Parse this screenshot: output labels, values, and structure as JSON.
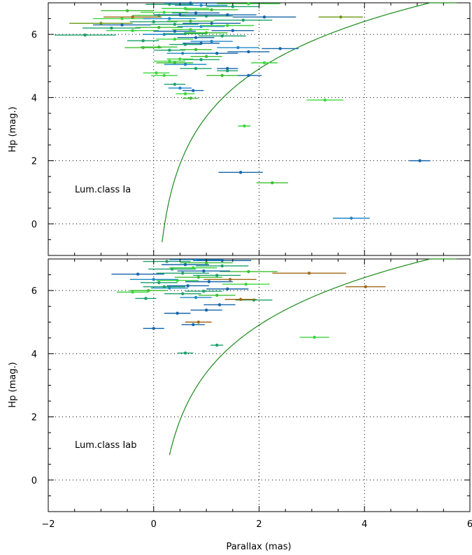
{
  "chart_data": [
    {
      "type": "scatter",
      "panel_label": "Lum.class Ia",
      "xlabel": "",
      "ylabel": "Hp (mag.)",
      "xlim": [
        -2,
        6
      ],
      "ylim": [
        -1,
        7
      ],
      "xticks": [
        -2,
        0,
        2,
        4,
        6
      ],
      "yticks": [
        0,
        2,
        4,
        6
      ],
      "grid": true,
      "curve": {
        "color": "#1b8a1b",
        "x_min": 0.16,
        "x_max": 5.75
      },
      "points": [
        {
          "x": 5.05,
          "y": 2.0,
          "err": 0.2,
          "color": "#1565a8"
        },
        {
          "x": 3.75,
          "y": 0.18,
          "err": 0.35,
          "color": "#1e88c8"
        },
        {
          "x": 2.25,
          "y": 1.3,
          "err": 0.3,
          "color": "#3cbf2e"
        },
        {
          "x": 1.65,
          "y": 1.63,
          "err": 0.42,
          "color": "#1565a8"
        },
        {
          "x": 3.25,
          "y": 3.92,
          "err": 0.35,
          "color": "#3cd63c"
        },
        {
          "x": 1.72,
          "y": 3.1,
          "err": 0.12,
          "color": "#3cd63c"
        },
        {
          "x": 3.55,
          "y": 6.55,
          "err": 0.42,
          "color": "#6b9a18"
        },
        {
          "x": -1.3,
          "y": 5.98,
          "err": 0.58,
          "color": "#1aa06a"
        },
        {
          "x": 2.4,
          "y": 5.55,
          "err": 0.35,
          "color": "#1565a8"
        },
        {
          "x": 2.1,
          "y": 5.1,
          "err": 0.25,
          "color": "#3cd63c"
        },
        {
          "x": 0.4,
          "y": 4.42,
          "err": 0.2,
          "color": "#1aa06a"
        },
        {
          "x": 0.5,
          "y": 4.3,
          "err": 0.22,
          "color": "#1e88c8"
        },
        {
          "x": 0.75,
          "y": 4.22,
          "err": 0.2,
          "color": "#1565a8"
        },
        {
          "x": 0.6,
          "y": 4.12,
          "err": 0.18,
          "color": "#3cd63c"
        },
        {
          "x": 0.7,
          "y": 3.98,
          "err": 0.15,
          "color": "#3cbf2e"
        },
        {
          "x": 0.05,
          "y": 4.78,
          "err": 0.25,
          "color": "#3cd63c"
        },
        {
          "x": 0.2,
          "y": 4.7,
          "err": 0.25,
          "color": "#3cd63c"
        },
        {
          "x": 0.8,
          "y": 4.92,
          "err": 0.3,
          "color": "#1aa06a"
        },
        {
          "x": 1.4,
          "y": 4.92,
          "err": 0.2,
          "color": "#1565a8"
        },
        {
          "x": 1.4,
          "y": 4.85,
          "err": 0.2,
          "color": "#1aa06a"
        },
        {
          "x": 1.8,
          "y": 4.7,
          "err": 0.25,
          "color": "#1565a8"
        },
        {
          "x": 1.3,
          "y": 4.7,
          "err": 0.3,
          "color": "#3cbf2e"
        },
        {
          "x": 0.4,
          "y": 5.1,
          "err": 0.35,
          "color": "#3cbf2e"
        },
        {
          "x": 0.6,
          "y": 5.05,
          "err": 0.4,
          "color": "#1e88c8"
        },
        {
          "x": 0.3,
          "y": 5.15,
          "err": 0.3,
          "color": "#3cd63c"
        },
        {
          "x": 0.9,
          "y": 5.2,
          "err": 0.35,
          "color": "#1aa06a"
        },
        {
          "x": 1.0,
          "y": 5.3,
          "err": 0.3,
          "color": "#3cbf2e"
        },
        {
          "x": 0.5,
          "y": 5.22,
          "err": 0.25,
          "color": "#3cd63c"
        },
        {
          "x": 0.55,
          "y": 5.4,
          "err": 0.3,
          "color": "#1e88c8"
        },
        {
          "x": 1.2,
          "y": 5.4,
          "err": 0.4,
          "color": "#1565a8"
        },
        {
          "x": 1.8,
          "y": 5.45,
          "err": 0.4,
          "color": "#1565a8"
        },
        {
          "x": 0.3,
          "y": 5.5,
          "err": 0.3,
          "color": "#1aa06a"
        },
        {
          "x": 0.8,
          "y": 5.52,
          "err": 0.3,
          "color": "#3cbf2e"
        },
        {
          "x": 1.6,
          "y": 5.58,
          "err": 0.4,
          "color": "#1e88c8"
        },
        {
          "x": 0.1,
          "y": 5.6,
          "err": 0.35,
          "color": "#3cbf2e"
        },
        {
          "x": -0.2,
          "y": 5.58,
          "err": 0.35,
          "color": "#3cbf2e"
        },
        {
          "x": 0.6,
          "y": 5.68,
          "err": 0.3,
          "color": "#1aa06a"
        },
        {
          "x": 0.9,
          "y": 5.72,
          "err": 0.35,
          "color": "#1565a8"
        },
        {
          "x": 1.1,
          "y": 5.78,
          "err": 0.4,
          "color": "#1e88c8"
        },
        {
          "x": -0.2,
          "y": 5.8,
          "err": 0.3,
          "color": "#1aa06a"
        },
        {
          "x": 0.4,
          "y": 5.85,
          "err": 0.35,
          "color": "#3cd63c"
        },
        {
          "x": 0.8,
          "y": 5.9,
          "err": 0.35,
          "color": "#1565a8"
        },
        {
          "x": 1.3,
          "y": 5.95,
          "err": 0.45,
          "color": "#1aa06a"
        },
        {
          "x": 0.2,
          "y": 6.0,
          "err": 0.4,
          "color": "#1e88c8"
        },
        {
          "x": 0.6,
          "y": 6.02,
          "err": 0.4,
          "color": "#1aa06a"
        },
        {
          "x": 1.0,
          "y": 6.05,
          "err": 0.4,
          "color": "#3cbf2e"
        },
        {
          "x": -0.4,
          "y": 6.12,
          "err": 0.5,
          "color": "#3cd63c"
        },
        {
          "x": 0.4,
          "y": 6.1,
          "err": 0.4,
          "color": "#1565a8"
        },
        {
          "x": 1.5,
          "y": 6.12,
          "err": 0.4,
          "color": "#1565a8"
        },
        {
          "x": 0.7,
          "y": 6.15,
          "err": 0.35,
          "color": "#3cd63c"
        },
        {
          "x": -0.8,
          "y": 6.2,
          "err": 0.55,
          "color": "#1aa06a"
        },
        {
          "x": 0.1,
          "y": 6.22,
          "err": 0.45,
          "color": "#3cbf2e"
        },
        {
          "x": 0.9,
          "y": 6.25,
          "err": 0.45,
          "color": "#1e88c8"
        },
        {
          "x": 1.4,
          "y": 6.28,
          "err": 0.5,
          "color": "#3cd63c"
        },
        {
          "x": -0.6,
          "y": 6.3,
          "err": 0.55,
          "color": "#1565a8"
        },
        {
          "x": 0.4,
          "y": 6.32,
          "err": 0.45,
          "color": "#1aa06a"
        },
        {
          "x": -1.0,
          "y": 6.35,
          "err": 0.6,
          "color": "#6b9a18"
        },
        {
          "x": 1.1,
          "y": 6.35,
          "err": 0.55,
          "color": "#1565a8"
        },
        {
          "x": 0.0,
          "y": 6.4,
          "err": 0.45,
          "color": "#1aa06a"
        },
        {
          "x": 0.7,
          "y": 6.42,
          "err": 0.45,
          "color": "#3cbf2e"
        },
        {
          "x": 1.7,
          "y": 6.45,
          "err": 0.55,
          "color": "#1aa06a"
        },
        {
          "x": -0.6,
          "y": 6.5,
          "err": 0.55,
          "color": "#3cd63c"
        },
        {
          "x": 0.3,
          "y": 6.5,
          "err": 0.5,
          "color": "#1e88c8"
        },
        {
          "x": 2.1,
          "y": 6.55,
          "err": 0.6,
          "color": "#1565a8"
        },
        {
          "x": -0.4,
          "y": 6.55,
          "err": 0.55,
          "color": "#a06a18"
        },
        {
          "x": 1.0,
          "y": 6.58,
          "err": 0.5,
          "color": "#1aa06a"
        },
        {
          "x": 0.1,
          "y": 6.6,
          "err": 0.5,
          "color": "#3cbf2e"
        },
        {
          "x": 1.4,
          "y": 6.62,
          "err": 0.55,
          "color": "#1565a8"
        },
        {
          "x": 0.5,
          "y": 6.62,
          "err": 0.5,
          "color": "#1565a8"
        },
        {
          "x": 0.8,
          "y": 6.68,
          "err": 0.45,
          "color": "#1565a8"
        },
        {
          "x": 0.2,
          "y": 6.7,
          "err": 0.45,
          "color": "#3cd63c"
        },
        {
          "x": -0.5,
          "y": 6.75,
          "err": 0.5,
          "color": "#3cbf2e"
        },
        {
          "x": 1.1,
          "y": 6.78,
          "err": 0.5,
          "color": "#3cbf2e"
        },
        {
          "x": 0.6,
          "y": 6.82,
          "err": 0.45,
          "color": "#3cd63c"
        },
        {
          "x": 1.5,
          "y": 6.88,
          "err": 0.5,
          "color": "#1aa06a"
        },
        {
          "x": 0.9,
          "y": 6.92,
          "err": 0.5,
          "color": "#1e88c8"
        },
        {
          "x": 0.3,
          "y": 6.95,
          "err": 0.45,
          "color": "#1aa06a"
        },
        {
          "x": 1.8,
          "y": 6.97,
          "err": 0.6,
          "color": "#3cd63c"
        },
        {
          "x": 0.7,
          "y": 6.99,
          "err": 0.5,
          "color": "#1565a8"
        }
      ]
    },
    {
      "type": "scatter",
      "panel_label": "Lum.class Iab",
      "xlabel": "Parallax (mas)",
      "ylabel": "Hp (mag.)",
      "xlim": [
        -2,
        6
      ],
      "ylim": [
        -1,
        7
      ],
      "xticks": [
        -2,
        0,
        2,
        4,
        6
      ],
      "yticks": [
        0,
        2,
        4,
        6
      ],
      "grid": true,
      "curve": {
        "color": "#1b8a1b",
        "x_min": 0.3,
        "x_max": 5.75
      },
      "points": [
        {
          "x": 3.05,
          "y": 4.52,
          "err": 0.28,
          "color": "#3cd63c"
        },
        {
          "x": 4.02,
          "y": 6.12,
          "err": 0.38,
          "color": "#a06a18"
        },
        {
          "x": 2.95,
          "y": 6.55,
          "err": 0.7,
          "color": "#a06a18"
        },
        {
          "x": 0.6,
          "y": 4.02,
          "err": 0.15,
          "color": "#1aa06a"
        },
        {
          "x": 1.2,
          "y": 4.27,
          "err": 0.12,
          "color": "#1aa06a"
        },
        {
          "x": 0.0,
          "y": 4.8,
          "err": 0.2,
          "color": "#1565a8"
        },
        {
          "x": 0.75,
          "y": 4.92,
          "err": 0.22,
          "color": "#1565a8"
        },
        {
          "x": 0.85,
          "y": 5.0,
          "err": 0.25,
          "color": "#a06a18"
        },
        {
          "x": 0.45,
          "y": 5.28,
          "err": 0.25,
          "color": "#1565a8"
        },
        {
          "x": 1.0,
          "y": 5.38,
          "err": 0.3,
          "color": "#1565a8"
        },
        {
          "x": 1.25,
          "y": 5.55,
          "err": 0.3,
          "color": "#1565a8"
        },
        {
          "x": 1.9,
          "y": 5.7,
          "err": 0.35,
          "color": "#1aa06a"
        },
        {
          "x": 1.65,
          "y": 5.72,
          "err": 0.3,
          "color": "#a06a18"
        },
        {
          "x": -0.15,
          "y": 5.75,
          "err": 0.2,
          "color": "#1aa06a"
        },
        {
          "x": 0.8,
          "y": 5.78,
          "err": 0.3,
          "color": "#1e88c8"
        },
        {
          "x": 1.2,
          "y": 5.85,
          "err": 0.35,
          "color": "#3cbf2e"
        },
        {
          "x": 0.55,
          "y": 5.9,
          "err": 0.35,
          "color": "#1aa06a"
        },
        {
          "x": -0.4,
          "y": 5.95,
          "err": 0.3,
          "color": "#3cd63c"
        },
        {
          "x": 0.95,
          "y": 5.98,
          "err": 0.35,
          "color": "#1aa06a"
        },
        {
          "x": -0.1,
          "y": 6.0,
          "err": 0.35,
          "color": "#3cbf2e"
        },
        {
          "x": 1.4,
          "y": 6.05,
          "err": 0.4,
          "color": "#1565a8"
        },
        {
          "x": 0.3,
          "y": 6.08,
          "err": 0.35,
          "color": "#1e88c8"
        },
        {
          "x": 0.2,
          "y": 6.12,
          "err": 0.4,
          "color": "#1aa06a"
        },
        {
          "x": 0.65,
          "y": 6.15,
          "err": 0.4,
          "color": "#1565a8"
        },
        {
          "x": 1.75,
          "y": 6.2,
          "err": 0.45,
          "color": "#3cd63c"
        },
        {
          "x": 0.1,
          "y": 6.25,
          "err": 0.35,
          "color": "#1aa06a"
        },
        {
          "x": 1.05,
          "y": 6.28,
          "err": 0.45,
          "color": "#1565a8"
        },
        {
          "x": 0.45,
          "y": 6.32,
          "err": 0.4,
          "color": "#3cd63c"
        },
        {
          "x": 1.45,
          "y": 6.35,
          "err": 0.5,
          "color": "#a06a18"
        },
        {
          "x": 0.0,
          "y": 6.35,
          "err": 0.45,
          "color": "#1e88c8"
        },
        {
          "x": 0.85,
          "y": 6.42,
          "err": 0.45,
          "color": "#3cbf2e"
        },
        {
          "x": 1.2,
          "y": 6.48,
          "err": 0.45,
          "color": "#1aa06a"
        },
        {
          "x": -0.3,
          "y": 6.52,
          "err": 0.5,
          "color": "#1565a8"
        },
        {
          "x": 0.55,
          "y": 6.55,
          "err": 0.5,
          "color": "#1aa06a"
        },
        {
          "x": 1.8,
          "y": 6.6,
          "err": 0.55,
          "color": "#3cbf2e"
        },
        {
          "x": 0.95,
          "y": 6.62,
          "err": 0.5,
          "color": "#1565a8"
        },
        {
          "x": 0.35,
          "y": 6.68,
          "err": 0.45,
          "color": "#1aa06a"
        },
        {
          "x": 0.75,
          "y": 6.72,
          "err": 0.45,
          "color": "#3cd63c"
        },
        {
          "x": 1.3,
          "y": 6.78,
          "err": 0.5,
          "color": "#1aa06a"
        },
        {
          "x": 0.6,
          "y": 6.82,
          "err": 0.45,
          "color": "#1565a8"
        },
        {
          "x": 1.0,
          "y": 6.88,
          "err": 0.5,
          "color": "#3cbf2e"
        },
        {
          "x": 0.25,
          "y": 6.92,
          "err": 0.45,
          "color": "#1aa06a"
        },
        {
          "x": 1.3,
          "y": 6.95,
          "err": 0.55,
          "color": "#1565a8"
        },
        {
          "x": 0.8,
          "y": 6.98,
          "err": 0.5,
          "color": "#1e88c8"
        }
      ]
    }
  ]
}
